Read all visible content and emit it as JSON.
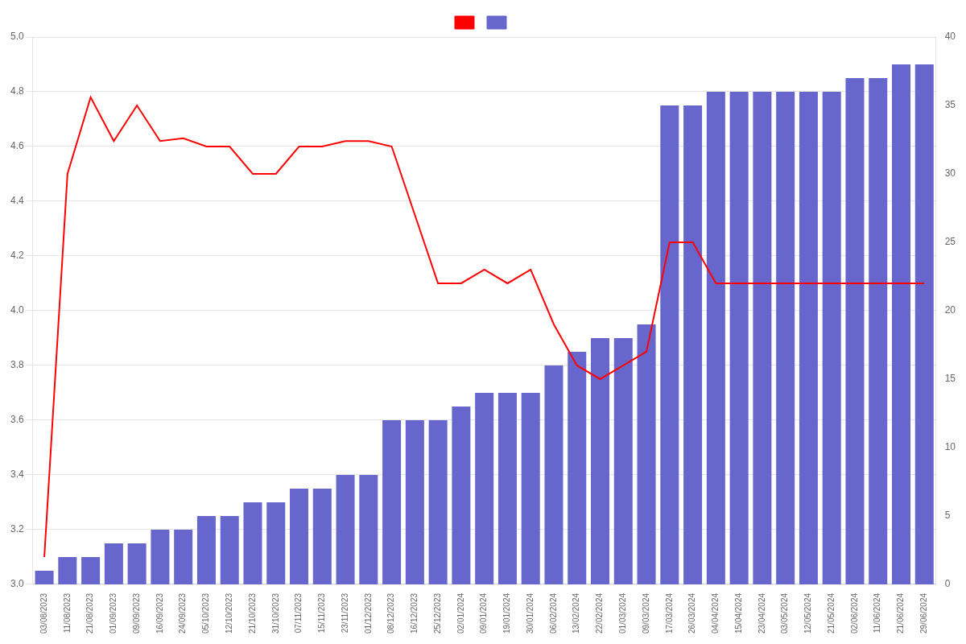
{
  "chart_data": {
    "type": "bar",
    "categories": [
      "03/08/2023",
      "11/08/2023",
      "21/08/2023",
      "01/09/2023",
      "09/09/2023",
      "16/09/2023",
      "24/09/2023",
      "05/10/2023",
      "12/10/2023",
      "21/10/2023",
      "31/10/2023",
      "07/11/2023",
      "15/11/2023",
      "23/11/2023",
      "01/12/2023",
      "08/12/2023",
      "16/12/2023",
      "25/12/2023",
      "02/01/2024",
      "09/01/2024",
      "19/01/2024",
      "30/01/2024",
      "06/02/2024",
      "13/02/2024",
      "22/02/2024",
      "01/03/2024",
      "09/03/2024",
      "17/03/2024",
      "26/03/2024",
      "04/04/2024",
      "15/04/2024",
      "23/04/2024",
      "03/05/2024",
      "12/05/2024",
      "21/05/2024",
      "02/06/2024",
      "11/06/2024",
      "21/06/2024",
      "29/06/2024"
    ],
    "series": [
      {
        "type": "line",
        "color": "#ff0000",
        "axis": "y",
        "values": [
          3.1,
          4.5,
          4.78,
          4.62,
          4.75,
          4.62,
          4.63,
          4.6,
          4.6,
          4.5,
          4.5,
          4.6,
          4.6,
          4.62,
          4.62,
          4.6,
          4.35,
          4.1,
          4.1,
          4.15,
          4.1,
          4.15,
          3.95,
          3.8,
          3.75,
          3.8,
          3.85,
          4.25,
          4.25,
          4.1,
          4.1,
          4.1,
          4.1,
          4.1,
          4.1,
          4.1,
          4.1,
          4.1,
          4.1
        ]
      },
      {
        "type": "bar",
        "color": "#6666cc",
        "axis": "y2",
        "values": [
          1,
          2,
          2,
          3,
          3,
          4,
          4,
          5,
          5,
          6,
          6,
          7,
          7,
          8,
          8,
          12,
          12,
          12,
          13,
          14,
          14,
          14,
          16,
          17,
          18,
          18,
          19,
          35,
          35,
          36,
          36,
          36,
          36,
          36,
          36,
          37,
          37,
          38,
          38
        ]
      }
    ],
    "ylim": [
      3.0,
      5.0
    ],
    "yticks": [
      {
        "value": 3.0,
        "label": "3.0"
      },
      3.2,
      3.4,
      3.6,
      3.8,
      {
        "value": 4.0,
        "label": "4.0"
      },
      4.2,
      4.4,
      4.6,
      4.8,
      {
        "value": 5.0,
        "label": "5.0"
      }
    ],
    "y2lim": [
      0,
      40
    ],
    "y2ticks": [
      0,
      5,
      10,
      15,
      20,
      25,
      30,
      35,
      40
    ],
    "grid": true,
    "legend": "top"
  }
}
